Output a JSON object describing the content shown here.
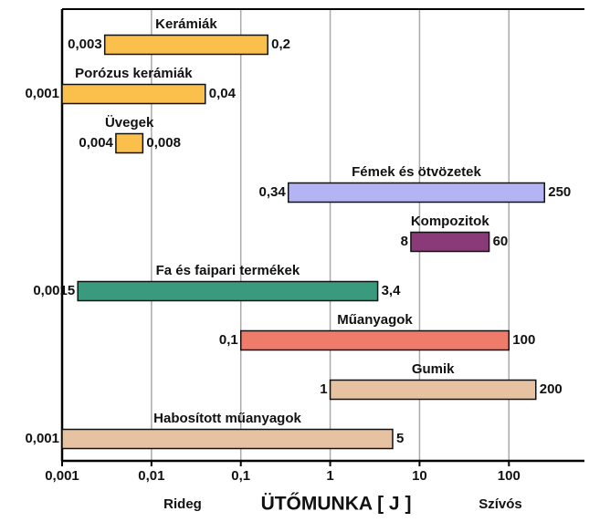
{
  "chart_data": {
    "type": "range-bar",
    "categories": [
      "Kerámiák",
      "Porózus kerámiák",
      "Üvegek",
      "Fémek és ötvözetek",
      "Kompozitok",
      "Fa és faipari termékek",
      "Műanyagok",
      "Gumik",
      "Habosított műanyagok"
    ],
    "low": [
      0.003,
      0.001,
      0.004,
      0.34,
      8,
      0.0015,
      0.1,
      1,
      0.001
    ],
    "high": [
      0.2,
      0.04,
      0.008,
      250,
      60,
      3.4,
      100,
      200,
      5
    ],
    "low_labels": [
      "0,003",
      "0,001",
      "0,004",
      "0,34",
      "8",
      "0,0015",
      "0,1",
      "1",
      "0,001"
    ],
    "high_labels": [
      "0,2",
      "0,04",
      "0,008",
      "250",
      "60",
      "3,4",
      "100",
      "200",
      "5"
    ],
    "colors": [
      "#fbc04b",
      "#fbc04b",
      "#fbc04b",
      "#b4b4f5",
      "#8a3a78",
      "#3a9a7e",
      "#ef7c6a",
      "#e7c2a2",
      "#e7c2a2"
    ],
    "xlog": true,
    "xlim": [
      0.001,
      700
    ],
    "xticks": [
      {
        "value": 0.001,
        "label": "0,001"
      },
      {
        "value": 0.01,
        "label": "0,01"
      },
      {
        "value": 0.1,
        "label": "0,1"
      },
      1,
      10,
      100
    ],
    "grid": true,
    "xlabel": "ÜTŐMUNKA [ J ]",
    "annotations": [
      "Rideg",
      "Szívós"
    ]
  }
}
